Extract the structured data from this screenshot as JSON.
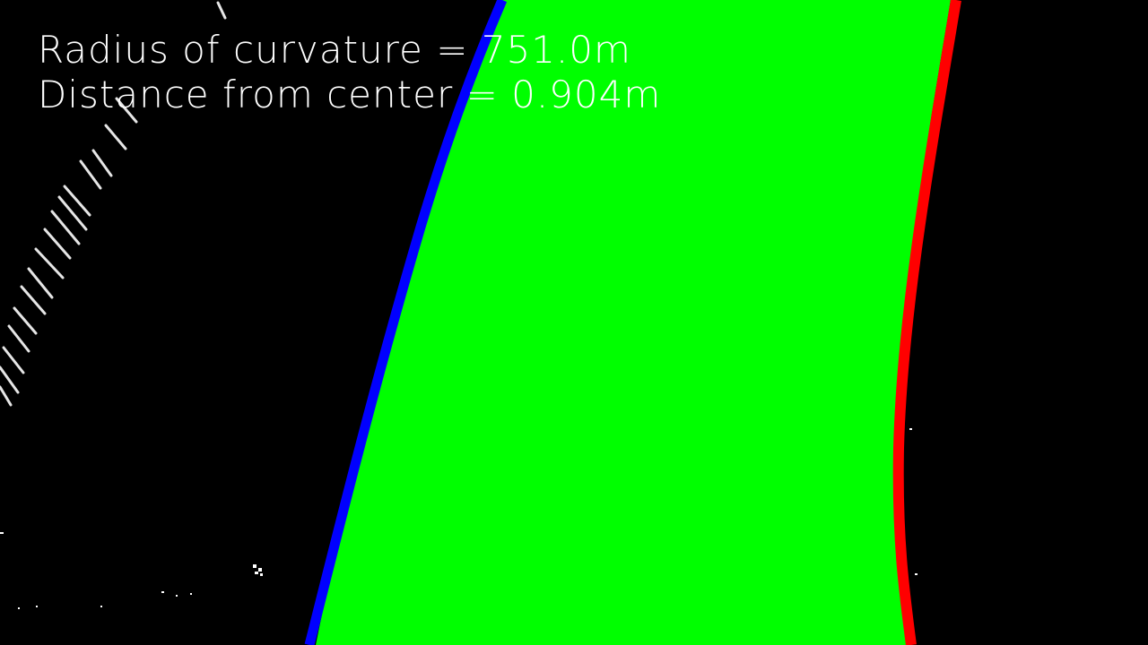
{
  "readouts": {
    "curvature": "Radius of curvature = 751.0m",
    "offset": "Distance from center = 0.904m"
  },
  "colors": {
    "background": "#000000",
    "lane_fill": "#00ff00",
    "left_line": "#0000ff",
    "right_line": "#ff0000",
    "markings": "#ffffff",
    "text": "#ffffff"
  }
}
